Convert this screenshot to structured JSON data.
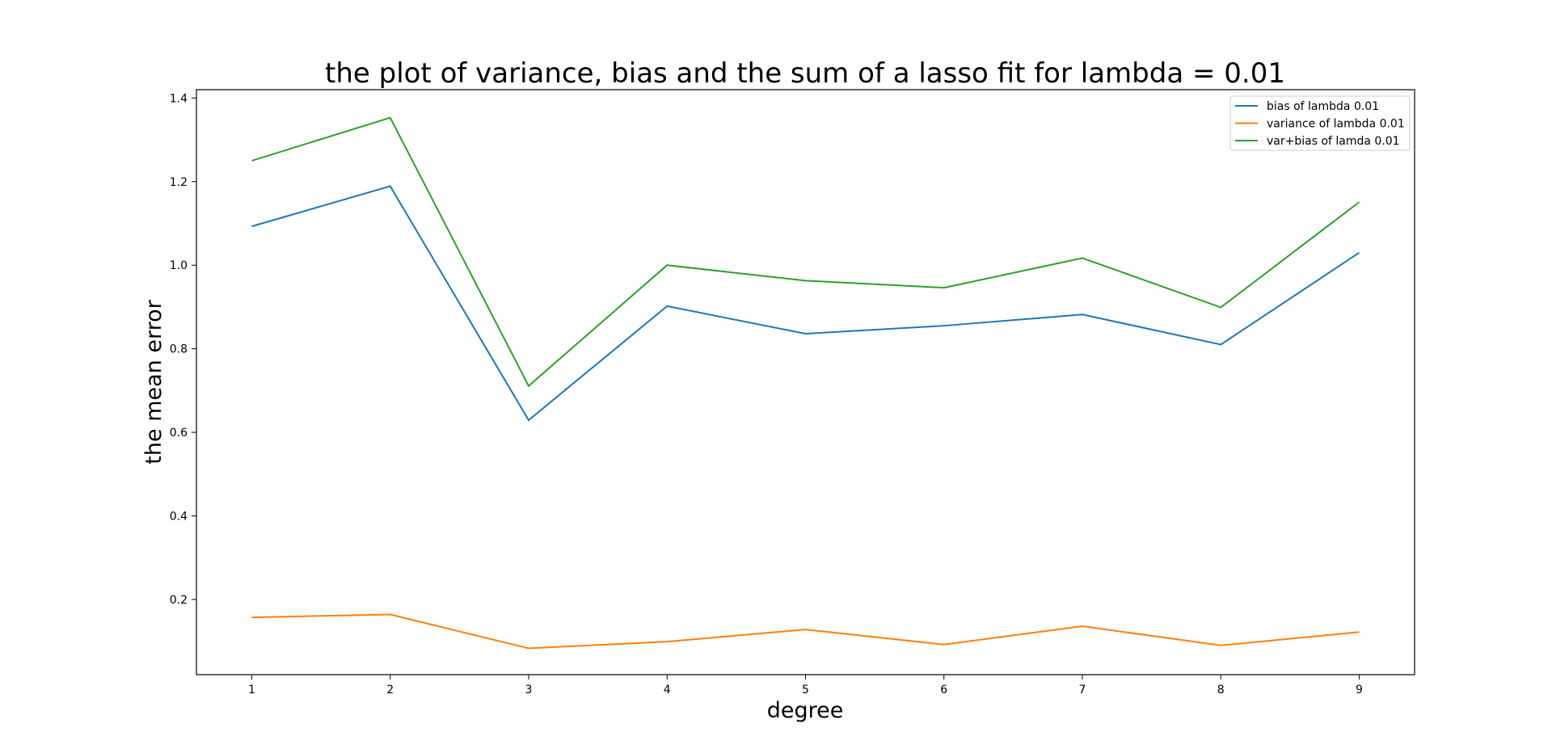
{
  "chart_data": {
    "type": "line",
    "title": "the plot of variance, bias and the sum of a lasso fit for lambda = 0.01",
    "xlabel": "degree",
    "ylabel": "the mean error",
    "x": [
      1,
      2,
      3,
      4,
      5,
      6,
      7,
      8,
      9
    ],
    "xticks": [
      "1",
      "2",
      "3",
      "4",
      "5",
      "6",
      "7",
      "8",
      "9"
    ],
    "yticks": [
      "0.2",
      "0.4",
      "0.6",
      "0.8",
      "1.0",
      "1.2",
      "1.4"
    ],
    "xlim": [
      0.6,
      9.4
    ],
    "ylim": [
      0.02,
      1.42
    ],
    "grid": false,
    "legend_position": "top-right",
    "series": [
      {
        "name": "bias of lambda 0.01",
        "color": "#1f77b4",
        "values": [
          1.093,
          1.189,
          0.629,
          0.902,
          0.836,
          0.855,
          0.882,
          0.81,
          1.03
        ]
      },
      {
        "name": "variance of lambda 0.01",
        "color": "#ff7f0e",
        "values": [
          0.157,
          0.164,
          0.083,
          0.099,
          0.128,
          0.092,
          0.136,
          0.09,
          0.122
        ]
      },
      {
        "name": "var+bias of lamda 0.01",
        "color": "#2ca02c",
        "values": [
          1.25,
          1.353,
          0.711,
          1.0,
          0.963,
          0.946,
          1.017,
          0.899,
          1.151
        ]
      }
    ]
  }
}
